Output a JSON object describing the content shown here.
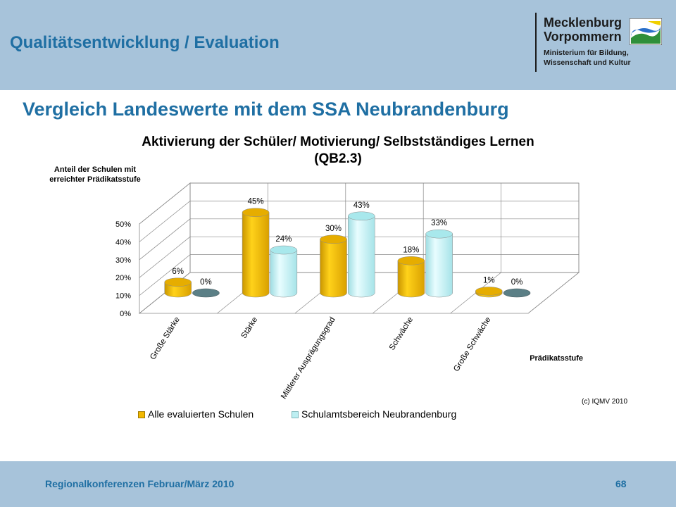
{
  "header": {
    "title": "Qualitätsentwicklung / Evaluation"
  },
  "logo": {
    "name_line1": "Mecklenburg",
    "name_line2": "Vorpommern",
    "sub_line1": "Ministerium für Bildung,",
    "sub_line2": "Wissenschaft und Kultur"
  },
  "page": {
    "subtitle": "Vergleich Landeswerte mit dem SSA Neubrandenburg"
  },
  "footer": {
    "text": "Regionalkonferenzen Februar/März 2010",
    "page_number": "68"
  },
  "copyright": "(c) IQMV 2010",
  "colors": {
    "series1": "#f2b800",
    "series2": "#bdeff2",
    "band": "#a7c3da",
    "title_blue": "#1f6fa3"
  },
  "chart_data": {
    "type": "bar",
    "title_line1": "Aktivierung der Schüler/ Motivierung/ Selbstständiges Lernen",
    "title_line2": "(QB2.3)",
    "ylabel_line1": "Anteil der Schulen mit",
    "ylabel_line2": "erreichter Prädikatsstufe",
    "xlabel": "Prädikatsstufe",
    "categories": [
      "Große Stärke",
      "Stärke",
      "Mittlerer Ausprägungsgrad",
      "Schwäche",
      "Große Schwäche"
    ],
    "series": [
      {
        "name": "Alle evaluierten Schulen",
        "values": [
          6,
          45,
          30,
          18,
          1
        ],
        "labels": [
          "6%",
          "45%",
          "30%",
          "18%",
          "1%"
        ]
      },
      {
        "name": "Schulamtsbereich Neubrandenburg",
        "values": [
          0,
          24,
          43,
          33,
          0
        ],
        "labels": [
          "0%",
          "24%",
          "43%",
          "33%",
          "0%"
        ]
      }
    ],
    "yticks": [
      "0%",
      "10%",
      "20%",
      "30%",
      "40%",
      "50%"
    ],
    "ylim": [
      0,
      50
    ],
    "legend_position": "bottom"
  }
}
